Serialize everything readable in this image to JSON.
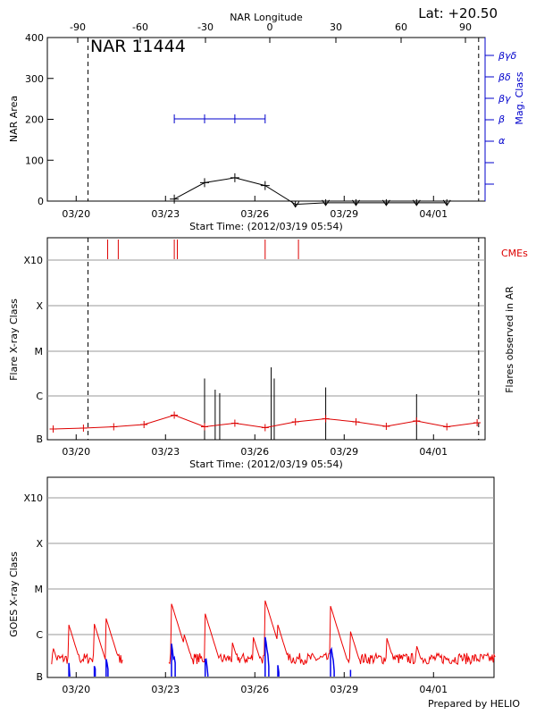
{
  "chart_data": [
    {
      "type": "line",
      "title": "NAR 11444",
      "top_axis_label": "NAR Longitude",
      "top_ticks": [
        "-90",
        "-60",
        "-30",
        "0",
        "30",
        "60",
        "90"
      ],
      "latitude_label": "Lat: +20.50",
      "ylabel": "NAR Area",
      "ylim": [
        0,
        400
      ],
      "yticks": [
        "0",
        "100",
        "200",
        "300",
        "400"
      ],
      "right_axis_label": "Mag. Class",
      "mag_classes": [
        "α",
        "β",
        "βγ",
        "βδ",
        "βγδ"
      ],
      "xlabel": "Start Time: (2012/03/19 05:54)",
      "xticks": [
        "03/20",
        "03/23",
        "03/26",
        "03/29",
        "04/01"
      ],
      "dashed_lines_day": [
        1.15,
        14.05
      ],
      "area_series": {
        "x": [
          4.0,
          5.0,
          6.0,
          7.0,
          8.0,
          9.0,
          10.0,
          11.0,
          12.0,
          13.0
        ],
        "y": [
          5,
          45,
          57,
          38,
          -8,
          -4,
          -4,
          -4,
          -4,
          -4
        ]
      },
      "mag_series": {
        "x": [
          4.0,
          5.0,
          6.0,
          7.0
        ],
        "class": [
          "β",
          "β",
          "β",
          "β"
        ]
      }
    },
    {
      "type": "bar",
      "ylabel": "Flare X-ray Class",
      "right_axis_label": "Flares observed in AR",
      "cme_label": "CMEs",
      "yticks": [
        "B",
        "C",
        "M",
        "X",
        "X10"
      ],
      "xlabel": "Start Time: (2012/03/19 05:54)",
      "xticks": [
        "03/20",
        "03/23",
        "03/26",
        "03/29",
        "04/01"
      ],
      "dashed_lines_day": [
        1.15,
        14.05
      ],
      "cme_days": [
        1.8,
        2.15,
        4.0,
        4.1,
        7.0,
        8.1
      ],
      "flare_days": [
        5.0,
        5.35,
        5.5,
        7.2,
        7.3,
        9.0,
        12.0
      ],
      "flare_log_flux": [
        -5.65,
        -5.9,
        -5.98,
        -5.4,
        -5.65,
        -5.85,
        -6.0
      ],
      "background_series": {
        "x": [
          0,
          1,
          2,
          3,
          4,
          5,
          6,
          7,
          8,
          9,
          10,
          11,
          12,
          13,
          14
        ],
        "log_flux": [
          -6.78,
          -6.76,
          -6.73,
          -6.68,
          -6.47,
          -6.73,
          -6.65,
          -6.75,
          -6.62,
          -6.55,
          -6.62,
          -6.72,
          -6.6,
          -6.73,
          -6.64
        ]
      }
    },
    {
      "type": "line",
      "ylabel": "GOES X-ray Class",
      "yticks": [
        "B",
        "C",
        "M",
        "X",
        "X10"
      ],
      "xticks": [
        "03/20",
        "03/23",
        "03/26",
        "03/29",
        "04/01"
      ],
      "series": [
        {
          "color": "#ee0000",
          "role": "long channel"
        },
        {
          "color": "#0000ee",
          "role": "short channel"
        }
      ],
      "gaps_day": [
        [
          2.3,
          3.8
        ],
        [
          14.8,
          15.1
        ]
      ],
      "events": [
        {
          "day": 0.0,
          "log_flux": -6.35
        },
        {
          "day": 0.5,
          "log_flux": -5.8
        },
        {
          "day": 1.35,
          "log_flux": -5.8
        },
        {
          "day": 1.75,
          "log_flux": -5.7
        },
        {
          "day": 3.9,
          "log_flux": -5.35
        },
        {
          "day": 4.3,
          "log_flux": -6.0
        },
        {
          "day": 5.0,
          "log_flux": -5.55
        },
        {
          "day": 5.9,
          "log_flux": -6.2
        },
        {
          "day": 6.6,
          "log_flux": -6.1
        },
        {
          "day": 7.0,
          "log_flux": -5.3
        },
        {
          "day": 7.4,
          "log_flux": -5.8
        },
        {
          "day": 9.15,
          "log_flux": -5.4
        },
        {
          "day": 9.8,
          "log_flux": -5.95
        },
        {
          "day": 11.0,
          "log_flux": -6.1
        },
        {
          "day": 12.0,
          "log_flux": -6.3
        },
        {
          "day": 13.4,
          "log_flux": -6.45
        }
      ],
      "baseline_log_flux": -6.6
    }
  ],
  "footer": "Prepared by HELIO"
}
